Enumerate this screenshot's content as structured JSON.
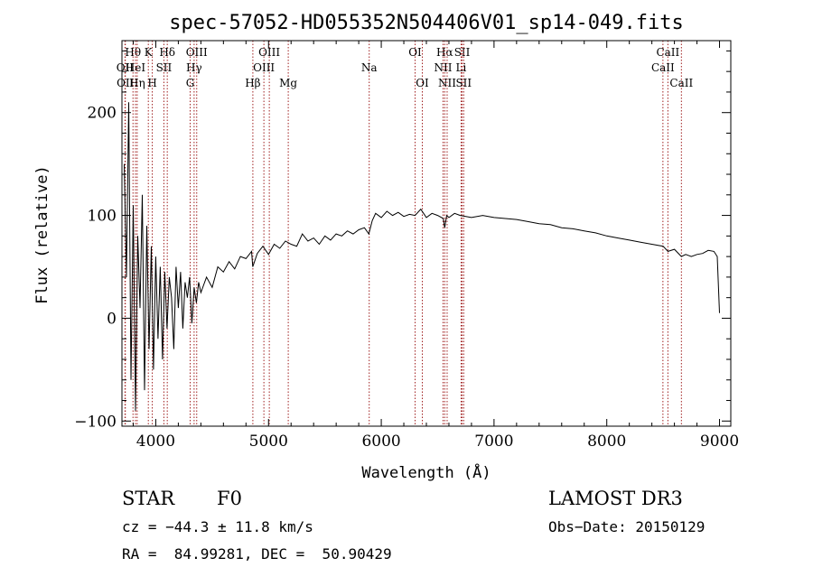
{
  "chart_data": {
    "type": "line",
    "title": "spec-57052-HD055352N504406V01_sp14-049.fits",
    "xlabel": "Wavelength (Å)",
    "ylabel": "Flux (relative)",
    "xlim": [
      3700,
      9100
    ],
    "ylim": [
      -105,
      270
    ],
    "x_ticks": [
      4000,
      5000,
      6000,
      7000,
      8000,
      9000
    ],
    "y_ticks": [
      -100,
      0,
      100,
      200
    ],
    "series": [
      {
        "name": "spectrum",
        "x": [
          3720,
          3740,
          3760,
          3780,
          3800,
          3820,
          3840,
          3860,
          3880,
          3900,
          3920,
          3940,
          3960,
          3980,
          4000,
          4020,
          4040,
          4060,
          4080,
          4100,
          4120,
          4140,
          4160,
          4180,
          4200,
          4220,
          4240,
          4260,
          4280,
          4300,
          4320,
          4340,
          4360,
          4380,
          4400,
          4450,
          4500,
          4550,
          4600,
          4650,
          4700,
          4750,
          4800,
          4850,
          4860,
          4900,
          4950,
          5000,
          5050,
          5100,
          5150,
          5200,
          5250,
          5300,
          5350,
          5400,
          5450,
          5500,
          5550,
          5600,
          5650,
          5700,
          5750,
          5800,
          5850,
          5890,
          5920,
          5950,
          6000,
          6050,
          6100,
          6150,
          6200,
          6250,
          6300,
          6350,
          6400,
          6450,
          6500,
          6550,
          6563,
          6580,
          6600,
          6650,
          6700,
          6750,
          6800,
          6900,
          7000,
          7100,
          7200,
          7300,
          7400,
          7500,
          7600,
          7700,
          7800,
          7900,
          8000,
          8100,
          8200,
          8300,
          8400,
          8500,
          8542,
          8600,
          8662,
          8700,
          8750,
          8800,
          8850,
          8900,
          8950,
          8980,
          9000
        ],
        "y": [
          150,
          40,
          210,
          -60,
          110,
          -90,
          80,
          10,
          120,
          -70,
          90,
          -30,
          70,
          -50,
          60,
          -20,
          50,
          -40,
          45,
          -10,
          40,
          20,
          -30,
          50,
          10,
          45,
          -10,
          35,
          20,
          40,
          -5,
          30,
          15,
          35,
          25,
          40,
          30,
          50,
          45,
          55,
          48,
          60,
          58,
          65,
          50,
          63,
          70,
          62,
          72,
          68,
          75,
          72,
          70,
          82,
          75,
          78,
          72,
          80,
          76,
          82,
          80,
          85,
          82,
          86,
          88,
          82,
          95,
          102,
          98,
          104,
          100,
          103,
          99,
          101,
          100,
          106,
          98,
          102,
          100,
          97,
          88,
          100,
          98,
          102,
          100,
          99,
          98,
          100,
          98,
          97,
          96,
          94,
          92,
          91,
          88,
          87,
          85,
          83,
          80,
          78,
          76,
          74,
          72,
          70,
          65,
          67,
          60,
          62,
          60,
          62,
          63,
          66,
          65,
          60,
          5
        ]
      }
    ],
    "line_markers": [
      {
        "label": "Hθ",
        "x": 3798,
        "row": 0
      },
      {
        "label": "OII",
        "x": 3727,
        "row": 1
      },
      {
        "label": "OII",
        "x": 3730,
        "row": 2
      },
      {
        "label": "HeI",
        "x": 3820,
        "row": 1
      },
      {
        "label": "Hη",
        "x": 3835,
        "row": 2
      },
      {
        "label": "K",
        "x": 3934,
        "row": 0
      },
      {
        "label": "H",
        "x": 3969,
        "row": 2
      },
      {
        "label": "Hδ",
        "x": 4102,
        "row": 0
      },
      {
        "label": "SII",
        "x": 4072,
        "row": 1
      },
      {
        "label": "OIII",
        "x": 4363,
        "row": 0
      },
      {
        "label": "Hγ",
        "x": 4340,
        "row": 1
      },
      {
        "label": "G",
        "x": 4305,
        "row": 2
      },
      {
        "label": "Hβ",
        "x": 4861,
        "row": 2
      },
      {
        "label": "OIII",
        "x": 5007,
        "row": 0
      },
      {
        "label": "OIII",
        "x": 4959,
        "row": 1
      },
      {
        "label": "Mg",
        "x": 5175,
        "row": 2
      },
      {
        "label": "Na",
        "x": 5893,
        "row": 1
      },
      {
        "label": "OI",
        "x": 6300,
        "row": 0
      },
      {
        "label": "OI",
        "x": 6364,
        "row": 2
      },
      {
        "label": "Hα",
        "x": 6563,
        "row": 0
      },
      {
        "label": "NII",
        "x": 6548,
        "row": 1
      },
      {
        "label": "NII",
        "x": 6584,
        "row": 2
      },
      {
        "label": "SII",
        "x": 6717,
        "row": 0
      },
      {
        "label": "Li",
        "x": 6708,
        "row": 1
      },
      {
        "label": "SII",
        "x": 6731,
        "row": 2
      },
      {
        "label": "CaII",
        "x": 8542,
        "row": 0
      },
      {
        "label": "CaII",
        "x": 8498,
        "row": 1
      },
      {
        "label": "CaII",
        "x": 8662,
        "row": 2
      }
    ]
  },
  "info": {
    "object_class": "STAR",
    "subclass": "F0",
    "survey": "LAMOST DR3",
    "cz": "cz = −44.3 ± 11.8 km/s",
    "obs_date": "Obs−Date: 20150129",
    "coords": "RA =  84.99281, DEC =  50.90429"
  }
}
